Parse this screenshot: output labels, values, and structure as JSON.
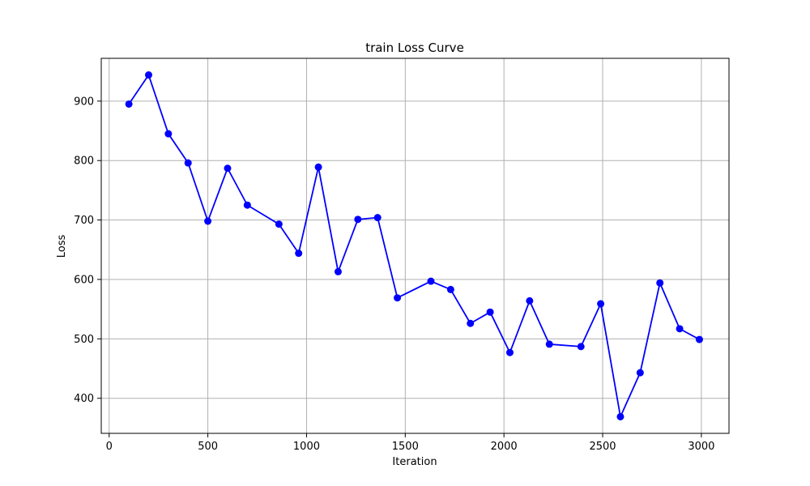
{
  "chart_data": {
    "type": "line",
    "title": "train Loss Curve",
    "xlabel": "Iteration",
    "ylabel": "Loss",
    "xlim": [
      -40,
      3140
    ],
    "ylim": [
      341,
      972
    ],
    "xticks": [
      0,
      500,
      1000,
      1500,
      2000,
      2500,
      3000
    ],
    "yticks": [
      400,
      500,
      600,
      700,
      800,
      900
    ],
    "grid": true,
    "series": [
      {
        "color": "#0000ff",
        "marker": "circle",
        "x": [
          100,
          200,
          300,
          400,
          500,
          600,
          700,
          860,
          960,
          1060,
          1160,
          1260,
          1360,
          1460,
          1630,
          1730,
          1830,
          1930,
          2030,
          2130,
          2230,
          2390,
          2490,
          2590,
          2690,
          2790,
          2890,
          2990
        ],
        "y": [
          895,
          944,
          845,
          796,
          698,
          787,
          725,
          693,
          644,
          789,
          613,
          701,
          704,
          569,
          597,
          583,
          526,
          545,
          477,
          564,
          491,
          487,
          559,
          369,
          443,
          594,
          517,
          499
        ]
      }
    ]
  }
}
